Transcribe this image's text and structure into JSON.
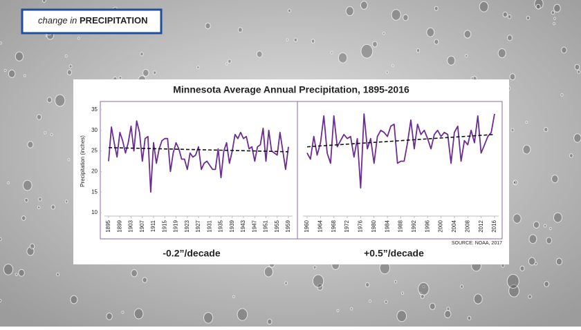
{
  "header": {
    "prefix": "change in",
    "emphasis": "PRECIPITATION"
  },
  "title": "Minnesota Average Annual Precipitation, 1895-2016",
  "source": "SOURCE: NOAA, 2017",
  "chart_data": [
    {
      "type": "line",
      "ylabel": "Precipitation (inches)",
      "x": [
        1895,
        1896,
        1897,
        1898,
        1899,
        1900,
        1901,
        1902,
        1903,
        1904,
        1905,
        1906,
        1907,
        1908,
        1909,
        1910,
        1911,
        1912,
        1913,
        1914,
        1915,
        1916,
        1917,
        1918,
        1919,
        1920,
        1921,
        1922,
        1923,
        1924,
        1925,
        1926,
        1927,
        1928,
        1929,
        1930,
        1931,
        1932,
        1933,
        1934,
        1935,
        1936,
        1937,
        1938,
        1939,
        1940,
        1941,
        1942,
        1943,
        1944,
        1945,
        1946,
        1947,
        1948,
        1949,
        1950,
        1951,
        1952,
        1953,
        1954,
        1955,
        1956,
        1957,
        1958,
        1959
      ],
      "series": [
        {
          "color": "#6a2c91",
          "values": [
            22.5,
            30.8,
            27,
            23.5,
            29.5,
            27.5,
            24.5,
            27,
            31,
            25,
            32.3,
            29.5,
            22.5,
            28,
            28.5,
            15,
            27,
            22,
            25.5,
            27.5,
            28,
            28,
            20,
            24.5,
            27,
            25.5,
            23,
            23,
            20.5,
            24.5,
            23.5,
            24,
            26,
            20.5,
            22,
            22.5,
            21.5,
            20.5,
            20.5,
            25.5,
            18.5,
            25,
            27,
            22,
            25,
            29,
            28,
            29.5,
            28,
            28.5,
            25.5,
            26,
            22.5,
            26,
            26.5,
            30.5,
            22.5,
            30,
            25,
            24.5,
            24,
            29.5,
            25,
            20.5,
            26
          ]
        }
      ],
      "trend": [
        25.8,
        24.8
      ],
      "annotation": "-0.2”/decade",
      "xlim": [
        1895,
        1959
      ],
      "xticks": [
        1895,
        1899,
        1903,
        1907,
        1911,
        1915,
        1919,
        1923,
        1927,
        1931,
        1935,
        1939,
        1943,
        1947,
        1951,
        1955,
        1959
      ],
      "ylim": [
        10,
        35
      ],
      "yticks": [
        10,
        15,
        20,
        25,
        30,
        35
      ]
    },
    {
      "type": "line",
      "x": [
        1960,
        1961,
        1962,
        1963,
        1964,
        1965,
        1966,
        1967,
        1968,
        1969,
        1970,
        1971,
        1972,
        1973,
        1974,
        1975,
        1976,
        1977,
        1978,
        1979,
        1980,
        1981,
        1982,
        1983,
        1984,
        1985,
        1986,
        1987,
        1988,
        1989,
        1990,
        1991,
        1992,
        1993,
        1994,
        1995,
        1996,
        1997,
        1998,
        1999,
        2000,
        2001,
        2002,
        2003,
        2004,
        2005,
        2006,
        2007,
        2008,
        2009,
        2010,
        2011,
        2012,
        2013,
        2014,
        2015,
        2016
      ],
      "series": [
        {
          "color": "#6a2c91",
          "values": [
            24.5,
            23,
            28.5,
            24,
            27,
            33.5,
            24.5,
            22,
            33.5,
            26,
            27.5,
            29,
            28,
            28.5,
            23.5,
            28,
            16,
            34,
            25.5,
            28,
            22,
            28.5,
            30,
            29.5,
            28.5,
            31,
            31.5,
            22,
            22.5,
            22.5,
            27,
            32.5,
            25.5,
            31.5,
            29,
            30,
            28,
            25.5,
            29,
            30,
            28.5,
            29.5,
            29,
            22,
            29.5,
            31,
            22.5,
            27.5,
            26.5,
            30,
            27,
            33.5,
            24.5,
            26.5,
            28.5,
            29.5,
            34
          ]
        }
      ],
      "trend": [
        26,
        29
      ],
      "annotation": "+0.5”/decade",
      "xlim": [
        1960,
        2016
      ],
      "xticks": [
        1960,
        1964,
        1968,
        1972,
        1976,
        1980,
        1984,
        1988,
        1992,
        1996,
        2000,
        2004,
        2008,
        2012,
        2016
      ],
      "ylim": [
        10,
        35
      ]
    }
  ]
}
